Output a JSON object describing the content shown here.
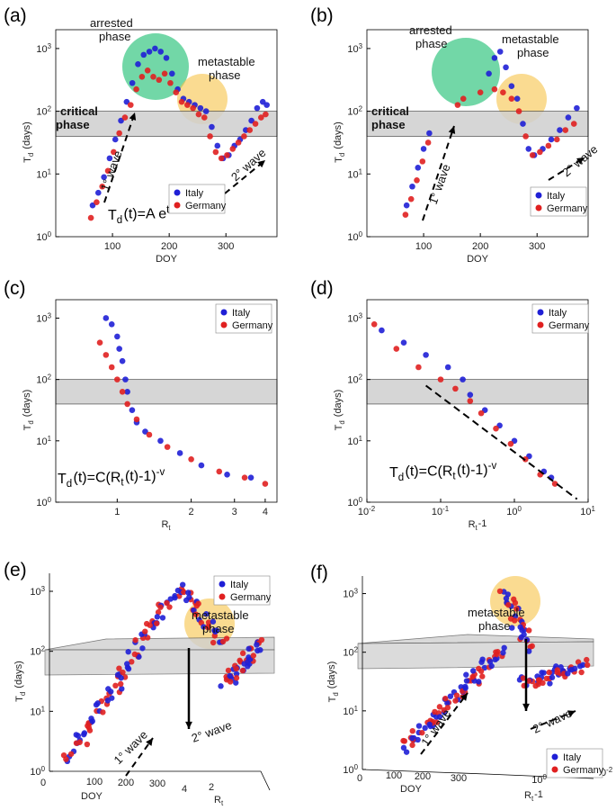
{
  "colors": {
    "italy": "#1f1fd6",
    "germany": "#e02020",
    "band": "#d0d0d0",
    "green": "#43c98a",
    "orange": "#f7c348"
  },
  "chart_data": [
    {
      "panel_label": "(a)",
      "type": "scatter",
      "xlabel": "DOY",
      "ylabel": "T_d (days)",
      "x_ticks": [
        "100",
        "200",
        "300"
      ],
      "y_ticks": [
        "10^0",
        "10^1",
        "10^2",
        "10^3"
      ],
      "xlim": [
        0,
        390
      ],
      "ylim_log10": [
        0,
        3.3
      ],
      "band_log10": [
        1.6,
        2.0
      ],
      "band_label_1": "critical",
      "band_label_2": "phase",
      "arrested_1": "arrested",
      "arrested_2": "phase",
      "metastable_1": "metastable",
      "metastable_2": "phase",
      "wave1": "1° wave",
      "wave2": "2° wave",
      "equation": "T_d(t)=A e^{t/s}",
      "legend": [
        "Italy",
        "Germany"
      ],
      "series": [
        {
          "name": "Italy",
          "points": [
            [
              65,
              0.5
            ],
            [
              75,
              0.7
            ],
            [
              85,
              0.95
            ],
            [
              95,
              1.25
            ],
            [
              105,
              1.55
            ],
            [
              115,
              1.85
            ],
            [
              125,
              2.15
            ],
            [
              135,
              2.45
            ],
            [
              145,
              2.75
            ],
            [
              155,
              2.9
            ],
            [
              165,
              2.95
            ],
            [
              175,
              3.0
            ],
            [
              185,
              2.95
            ],
            [
              195,
              2.85
            ],
            [
              205,
              2.6
            ],
            [
              215,
              2.35
            ],
            [
              225,
              2.2
            ],
            [
              235,
              2.15
            ],
            [
              245,
              2.1
            ],
            [
              255,
              2.05
            ],
            [
              265,
              2.0
            ],
            [
              275,
              1.75
            ],
            [
              285,
              1.45
            ],
            [
              295,
              1.25
            ],
            [
              305,
              1.3
            ],
            [
              315,
              1.45
            ],
            [
              325,
              1.55
            ],
            [
              335,
              1.7
            ],
            [
              345,
              1.85
            ],
            [
              355,
              2.05
            ],
            [
              365,
              2.15
            ],
            [
              372,
              2.1
            ]
          ]
        },
        {
          "name": "Germany",
          "points": [
            [
              62,
              0.3
            ],
            [
              72,
              0.55
            ],
            [
              82,
              0.8
            ],
            [
              92,
              1.05
            ],
            [
              102,
              1.35
            ],
            [
              112,
              1.65
            ],
            [
              122,
              1.9
            ],
            [
              132,
              2.1
            ],
            [
              142,
              2.35
            ],
            [
              152,
              2.55
            ],
            [
              162,
              2.65
            ],
            [
              172,
              2.55
            ],
            [
              182,
              2.5
            ],
            [
              192,
              2.6
            ],
            [
              202,
              2.45
            ],
            [
              212,
              2.3
            ],
            [
              222,
              2.15
            ],
            [
              232,
              2.1
            ],
            [
              242,
              2.05
            ],
            [
              252,
              1.95
            ],
            [
              262,
              1.9
            ],
            [
              272,
              1.6
            ],
            [
              282,
              1.35
            ],
            [
              292,
              1.25
            ],
            [
              302,
              1.3
            ],
            [
              312,
              1.4
            ],
            [
              322,
              1.5
            ],
            [
              332,
              1.6
            ],
            [
              342,
              1.7
            ],
            [
              352,
              1.8
            ],
            [
              362,
              1.9
            ],
            [
              370,
              1.95
            ]
          ]
        }
      ]
    },
    {
      "panel_label": "(b)",
      "type": "scatter",
      "xlabel": "DOY",
      "ylabel": "T_d (days)",
      "x_ticks": [
        "100",
        "200",
        "300"
      ],
      "y_ticks": [
        "10^0",
        "10^1",
        "10^2",
        "10^3"
      ],
      "xlim": [
        0,
        390
      ],
      "ylim_log10": [
        0,
        3.3
      ],
      "band_log10": [
        1.6,
        2.0
      ],
      "band_label_1": "critical",
      "band_label_2": "phase",
      "arrested_1": "arrested",
      "arrested_2": "phase",
      "metastable_1": "metastable",
      "metastable_2": "phase",
      "wave1": "1° wave",
      "wave2": "2° wave",
      "legend": [
        "Italy",
        "Germany"
      ],
      "series": [
        {
          "name": "Italy",
          "points": [
            [
              70,
              0.5
            ],
            [
              80,
              0.8
            ],
            [
              90,
              1.1
            ],
            [
              100,
              1.4
            ],
            [
              110,
              1.65
            ],
            [
              215,
              2.6
            ],
            [
              225,
              2.85
            ],
            [
              235,
              2.95
            ],
            [
              245,
              2.7
            ],
            [
              255,
              2.4
            ],
            [
              265,
              2.2
            ],
            [
              275,
              1.8
            ],
            [
              285,
              1.4
            ],
            [
              295,
              1.3
            ],
            [
              310,
              1.4
            ],
            [
              325,
              1.55
            ],
            [
              340,
              1.7
            ],
            [
              355,
              1.9
            ],
            [
              370,
              2.05
            ]
          ]
        },
        {
          "name": "Germany",
          "points": [
            [
              68,
              0.35
            ],
            [
              78,
              0.6
            ],
            [
              88,
              0.9
            ],
            [
              98,
              1.2
            ],
            [
              108,
              1.5
            ],
            [
              160,
              2.1
            ],
            [
              170,
              2.2
            ],
            [
              200,
              2.3
            ],
            [
              225,
              2.35
            ],
            [
              240,
              2.3
            ],
            [
              255,
              2.2
            ],
            [
              268,
              2.0
            ],
            [
              280,
              1.6
            ],
            [
              292,
              1.3
            ],
            [
              305,
              1.35
            ],
            [
              320,
              1.45
            ],
            [
              335,
              1.55
            ],
            [
              350,
              1.7
            ],
            [
              365,
              1.8
            ]
          ]
        }
      ]
    },
    {
      "panel_label": "(c)",
      "type": "scatter",
      "xlabel": "R_t",
      "ylabel": "T_d (days)",
      "x_ticks": [
        "1",
        "2",
        "3",
        "4"
      ],
      "y_ticks": [
        "10^0",
        "10^1",
        "10^2",
        "10^3"
      ],
      "xlim_log10": [
        -0.25,
        0.65
      ],
      "ylim_log10": [
        0,
        3.3
      ],
      "band_log10": [
        1.6,
        2.0
      ],
      "equation": "T_d(t)=C(R_t(t)-1)^{-v}",
      "legend": [
        "Italy",
        "Germany"
      ],
      "series": [
        {
          "name": "Italy",
          "points": [
            [
              0.9,
              3.0
            ],
            [
              0.95,
              2.9
            ],
            [
              1.0,
              2.7
            ],
            [
              1.02,
              2.5
            ],
            [
              1.05,
              2.3
            ],
            [
              1.08,
              2.0
            ],
            [
              1.1,
              1.8
            ],
            [
              1.15,
              1.5
            ],
            [
              1.2,
              1.3
            ],
            [
              1.3,
              1.15
            ],
            [
              1.5,
              1.0
            ],
            [
              1.8,
              0.8
            ],
            [
              2.2,
              0.6
            ],
            [
              2.8,
              0.45
            ],
            [
              3.5,
              0.4
            ]
          ]
        },
        {
          "name": "Germany",
          "points": [
            [
              0.85,
              2.6
            ],
            [
              0.9,
              2.4
            ],
            [
              0.95,
              2.2
            ],
            [
              1.0,
              2.0
            ],
            [
              1.05,
              1.8
            ],
            [
              1.1,
              1.6
            ],
            [
              1.2,
              1.35
            ],
            [
              1.35,
              1.1
            ],
            [
              1.6,
              0.9
            ],
            [
              2.0,
              0.7
            ],
            [
              2.6,
              0.5
            ],
            [
              3.3,
              0.4
            ],
            [
              4.0,
              0.3
            ]
          ]
        }
      ]
    },
    {
      "panel_label": "(d)",
      "type": "scatter",
      "xlabel": "R_t-1",
      "ylabel": "T_d (days)",
      "x_ticks": [
        "10^-2",
        "10^-1",
        "10^0",
        "10^1"
      ],
      "y_ticks": [
        "10^0",
        "10^1",
        "10^2",
        "10^3"
      ],
      "xlim_log10": [
        -2,
        1
      ],
      "ylim_log10": [
        0,
        3.3
      ],
      "band_log10": [
        1.6,
        2.0
      ],
      "fit_line_log10": [
        [
          -1.2,
          1.9
        ],
        [
          0.85,
          0.05
        ]
      ],
      "equation": "T_d(t)=C(R_t(t)-1)^{-v}",
      "legend": [
        "Italy",
        "Germany"
      ],
      "series": [
        {
          "name": "Italy",
          "points": [
            [
              -1.8,
              2.8
            ],
            [
              -1.5,
              2.6
            ],
            [
              -1.2,
              2.4
            ],
            [
              -0.9,
              2.2
            ],
            [
              -0.7,
              2.0
            ],
            [
              -0.6,
              1.75
            ],
            [
              -0.4,
              1.5
            ],
            [
              -0.2,
              1.25
            ],
            [
              0.0,
              1.0
            ],
            [
              0.2,
              0.75
            ],
            [
              0.4,
              0.5
            ],
            [
              0.5,
              0.4
            ]
          ]
        },
        {
          "name": "Germany",
          "points": [
            [
              -1.9,
              2.9
            ],
            [
              -1.6,
              2.5
            ],
            [
              -1.3,
              2.2
            ],
            [
              -1.0,
              2.0
            ],
            [
              -0.8,
              1.85
            ],
            [
              -0.6,
              1.65
            ],
            [
              -0.45,
              1.45
            ],
            [
              -0.25,
              1.2
            ],
            [
              -0.05,
              0.95
            ],
            [
              0.15,
              0.7
            ],
            [
              0.35,
              0.45
            ],
            [
              0.55,
              0.3
            ]
          ]
        }
      ]
    },
    {
      "panel_label": "(e)",
      "type": "scatter",
      "xlabel": "DOY",
      "zlabel": "R_t",
      "ylabel": "T_d (days)",
      "x_ticks": [
        "0",
        "100",
        "200",
        "300"
      ],
      "z_ticks": [
        "4",
        "2"
      ],
      "y_ticks": [
        "10^0",
        "10^1",
        "10^2",
        "10^3"
      ],
      "metastable_1": "metastable",
      "metastable_2": "phase",
      "wave1": "1° wave",
      "wave2": "2° wave",
      "legend": [
        "Italy",
        "Germany"
      ]
    },
    {
      "panel_label": "(f)",
      "type": "scatter",
      "xlabel": "DOY",
      "zlabel": "R_t-1",
      "ylabel": "T_d (days)",
      "x_ticks": [
        "0",
        "100",
        "200",
        "300"
      ],
      "z_ticks": [
        "10^0",
        "10^-2"
      ],
      "y_ticks": [
        "10^0",
        "10^1",
        "10^2",
        "10^3"
      ],
      "metastable_1": "metastable",
      "metastable_2": "phase",
      "wave1": "1° wave",
      "wave2": "2° wave",
      "legend": [
        "Italy",
        "Germany"
      ]
    }
  ]
}
